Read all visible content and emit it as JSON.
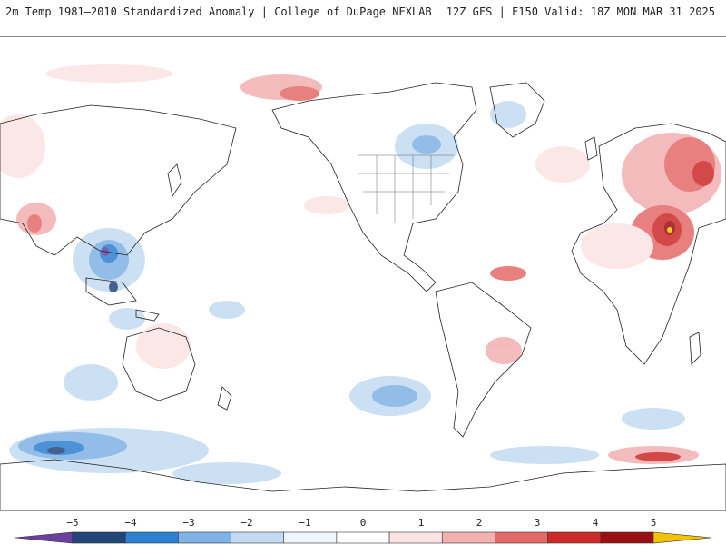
{
  "header": {
    "left_title": "2m Temp 1981–2010 Standardized Anomaly | College of DuPage NEXLAB",
    "right_title": "12Z GFS | F150 Valid: 18Z MON MAR 31 2025"
  },
  "map": {
    "projection": "global equirectangular, Pacific-centered",
    "colors": {
      "ocean_land_background": "#ffffff",
      "coastline": "#222222"
    }
  },
  "colorbar": {
    "ticks": [
      "−5",
      "−4",
      "−3",
      "−2",
      "−1",
      "0",
      "1",
      "2",
      "3",
      "4",
      "5"
    ],
    "colors": [
      "#6a3fa0",
      "#24457a",
      "#2d7fd0",
      "#7fb2e5",
      "#c3dbf2",
      "#eef5fc",
      "#ffffff",
      "#fbe3e3",
      "#f2b0b0",
      "#e46a6a",
      "#cc2a2a",
      "#9a0f14",
      "#f2c200"
    ]
  }
}
